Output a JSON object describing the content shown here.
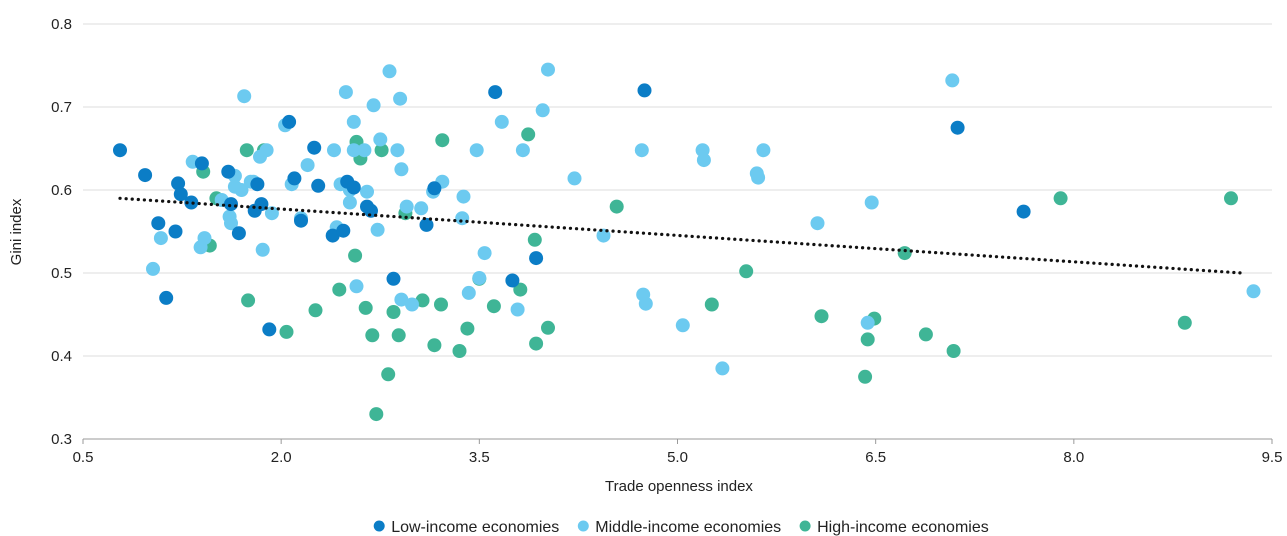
{
  "chart_data": {
    "type": "scatter",
    "xlabel": "Trade openness index",
    "ylabel": "Gini index",
    "xlim": [
      0.5,
      9.5
    ],
    "ylim": [
      0.3,
      0.8
    ],
    "x_ticks": [
      "0.5",
      "2.0",
      "3.5",
      "5.0",
      "6.5",
      "8.0",
      "9.5"
    ],
    "x_tick_values": [
      0.5,
      2.0,
      3.5,
      5.0,
      6.5,
      8.0,
      9.5
    ],
    "y_ticks": [
      "0.3",
      "0.4",
      "0.5",
      "0.6",
      "0.7",
      "0.8"
    ],
    "y_tick_values": [
      0.3,
      0.4,
      0.5,
      0.6,
      0.7,
      0.8
    ],
    "grid": "horizontal",
    "legend_position": "bottom-center",
    "trendline": {
      "style": "dotted",
      "color": "#111111",
      "points": [
        [
          0.78,
          0.59
        ],
        [
          9.27,
          0.5
        ]
      ]
    },
    "series": [
      {
        "name": "Low-income economies",
        "color": "#0b7dc6",
        "points": [
          [
            0.78,
            0.648
          ],
          [
            0.97,
            0.618
          ],
          [
            1.07,
            0.56
          ],
          [
            1.13,
            0.47
          ],
          [
            1.2,
            0.55
          ],
          [
            1.22,
            0.608
          ],
          [
            1.24,
            0.595
          ],
          [
            1.32,
            0.585
          ],
          [
            1.4,
            0.632
          ],
          [
            1.6,
            0.622
          ],
          [
            1.62,
            0.583
          ],
          [
            1.68,
            0.548
          ],
          [
            1.8,
            0.575
          ],
          [
            1.82,
            0.607
          ],
          [
            1.85,
            0.583
          ],
          [
            1.91,
            0.432
          ],
          [
            2.06,
            0.682
          ],
          [
            2.1,
            0.614
          ],
          [
            2.15,
            0.563
          ],
          [
            2.25,
            0.651
          ],
          [
            2.28,
            0.605
          ],
          [
            2.39,
            0.545
          ],
          [
            2.47,
            0.551
          ],
          [
            2.5,
            0.61
          ],
          [
            2.55,
            0.603
          ],
          [
            2.65,
            0.58
          ],
          [
            2.68,
            0.575
          ],
          [
            2.85,
            0.493
          ],
          [
            3.1,
            0.558
          ],
          [
            3.16,
            0.602
          ],
          [
            3.62,
            0.718
          ],
          [
            3.75,
            0.491
          ],
          [
            3.93,
            0.518
          ],
          [
            4.75,
            0.72
          ],
          [
            7.12,
            0.675
          ],
          [
            7.62,
            0.574
          ]
        ]
      },
      {
        "name": "Middle-income economies",
        "color": "#6ccaf0",
        "points": [
          [
            1.03,
            0.505
          ],
          [
            1.09,
            0.542
          ],
          [
            1.33,
            0.634
          ],
          [
            1.39,
            0.531
          ],
          [
            1.42,
            0.542
          ],
          [
            1.55,
            0.588
          ],
          [
            1.61,
            0.568
          ],
          [
            1.62,
            0.56
          ],
          [
            1.65,
            0.604
          ],
          [
            1.65,
            0.617
          ],
          [
            1.7,
            0.6
          ],
          [
            1.72,
            0.713
          ],
          [
            1.77,
            0.61
          ],
          [
            1.79,
            0.61
          ],
          [
            1.84,
            0.64
          ],
          [
            1.86,
            0.528
          ],
          [
            1.89,
            0.648
          ],
          [
            1.93,
            0.572
          ],
          [
            2.03,
            0.678
          ],
          [
            2.08,
            0.607
          ],
          [
            2.15,
            0.566
          ],
          [
            2.2,
            0.63
          ],
          [
            2.4,
            0.648
          ],
          [
            2.42,
            0.555
          ],
          [
            2.45,
            0.607
          ],
          [
            2.49,
            0.718
          ],
          [
            2.52,
            0.585
          ],
          [
            2.52,
            0.6
          ],
          [
            2.55,
            0.682
          ],
          [
            2.55,
            0.648
          ],
          [
            2.57,
            0.484
          ],
          [
            2.63,
            0.648
          ],
          [
            2.65,
            0.598
          ],
          [
            2.7,
            0.702
          ],
          [
            2.73,
            0.552
          ],
          [
            2.75,
            0.661
          ],
          [
            2.82,
            0.743
          ],
          [
            2.88,
            0.648
          ],
          [
            2.9,
            0.71
          ],
          [
            2.91,
            0.625
          ],
          [
            2.91,
            0.468
          ],
          [
            2.95,
            0.58
          ],
          [
            2.99,
            0.462
          ],
          [
            3.06,
            0.578
          ],
          [
            3.15,
            0.598
          ],
          [
            3.22,
            0.61
          ],
          [
            3.37,
            0.566
          ],
          [
            3.38,
            0.592
          ],
          [
            3.42,
            0.476
          ],
          [
            3.48,
            0.648
          ],
          [
            3.5,
            0.494
          ],
          [
            3.54,
            0.524
          ],
          [
            3.67,
            0.682
          ],
          [
            3.79,
            0.456
          ],
          [
            3.83,
            0.648
          ],
          [
            3.98,
            0.696
          ],
          [
            4.02,
            0.745
          ],
          [
            4.22,
            0.614
          ],
          [
            4.44,
            0.545
          ],
          [
            4.73,
            0.648
          ],
          [
            4.74,
            0.474
          ],
          [
            4.76,
            0.463
          ],
          [
            5.04,
            0.437
          ],
          [
            5.19,
            0.648
          ],
          [
            5.2,
            0.636
          ],
          [
            5.34,
            0.385
          ],
          [
            5.6,
            0.62
          ],
          [
            5.61,
            0.615
          ],
          [
            5.65,
            0.648
          ],
          [
            6.06,
            0.56
          ],
          [
            6.44,
            0.44
          ],
          [
            6.47,
            0.585
          ],
          [
            7.08,
            0.732
          ],
          [
            9.36,
            0.478
          ]
        ]
      },
      {
        "name": "High-income economies",
        "color": "#3fb596",
        "points": [
          [
            1.41,
            0.622
          ],
          [
            1.46,
            0.533
          ],
          [
            1.51,
            0.59
          ],
          [
            1.75,
            0.467
          ],
          [
            1.74,
            0.648
          ],
          [
            1.87,
            0.648
          ],
          [
            2.04,
            0.429
          ],
          [
            2.26,
            0.455
          ],
          [
            2.44,
            0.48
          ],
          [
            2.56,
            0.521
          ],
          [
            2.57,
            0.658
          ],
          [
            2.6,
            0.638
          ],
          [
            2.64,
            0.458
          ],
          [
            2.69,
            0.425
          ],
          [
            2.72,
            0.33
          ],
          [
            2.76,
            0.648
          ],
          [
            2.81,
            0.378
          ],
          [
            2.85,
            0.453
          ],
          [
            2.89,
            0.425
          ],
          [
            2.94,
            0.572
          ],
          [
            3.07,
            0.467
          ],
          [
            3.16,
            0.413
          ],
          [
            3.21,
            0.462
          ],
          [
            3.22,
            0.66
          ],
          [
            3.35,
            0.406
          ],
          [
            3.41,
            0.433
          ],
          [
            3.5,
            0.493
          ],
          [
            3.61,
            0.46
          ],
          [
            3.81,
            0.48
          ],
          [
            3.87,
            0.667
          ],
          [
            3.92,
            0.54
          ],
          [
            3.93,
            0.415
          ],
          [
            4.02,
            0.434
          ],
          [
            4.54,
            0.58
          ],
          [
            5.26,
            0.462
          ],
          [
            5.52,
            0.502
          ],
          [
            6.09,
            0.448
          ],
          [
            6.42,
            0.375
          ],
          [
            6.44,
            0.42
          ],
          [
            6.49,
            0.445
          ],
          [
            6.72,
            0.524
          ],
          [
            6.88,
            0.426
          ],
          [
            7.09,
            0.406
          ],
          [
            7.9,
            0.59
          ],
          [
            8.84,
            0.44
          ],
          [
            9.19,
            0.59
          ]
        ]
      }
    ]
  }
}
